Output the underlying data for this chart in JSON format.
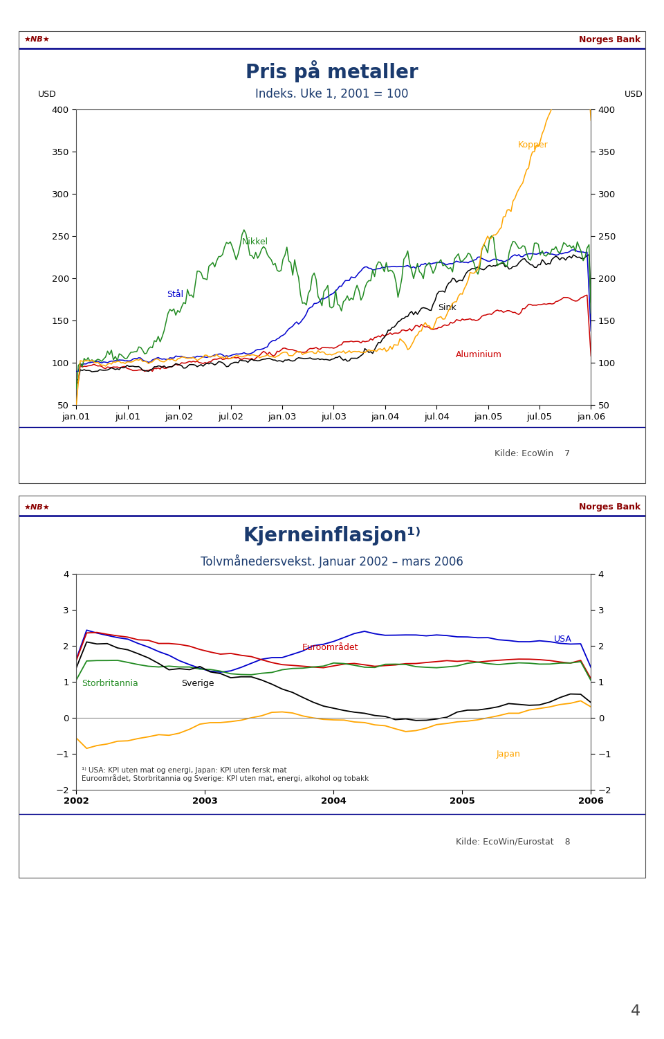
{
  "page_bg": "#ffffff",
  "page_number": "4",
  "chart1": {
    "title": "Pris på metaller",
    "subtitle": "Indeks. Uke 1, 2001 = 100",
    "title_color": "#1a3a6e",
    "ylim": [
      50,
      400
    ],
    "yticks": [
      50,
      100,
      150,
      200,
      250,
      300,
      350,
      400
    ],
    "xtick_labels": [
      "jan.01",
      "jul.01",
      "jan.02",
      "jul.02",
      "jan.03",
      "jul.03",
      "jan.04",
      "jul.04",
      "jan.05",
      "jul.05",
      "jan.06"
    ],
    "source": "Kilde: EcoWin",
    "page_num": "7",
    "lines": {
      "Kopper": {
        "color": "#FFA500"
      },
      "Nikkel": {
        "color": "#228B22"
      },
      "Stål": {
        "color": "#0000CD"
      },
      "Sink": {
        "color": "#000000"
      },
      "Aluminium": {
        "color": "#CC0000"
      }
    }
  },
  "chart2": {
    "title": "Kjerneinflasjon¹⁾",
    "subtitle": "Tolvmånedersvekst. Januar 2002 – mars 2006",
    "title_color": "#1a3a6e",
    "ylim": [
      -2,
      4
    ],
    "yticks": [
      -2,
      -1,
      0,
      1,
      2,
      3,
      4
    ],
    "xtick_labels": [
      "2002",
      "2003",
      "2004",
      "2005",
      "2006"
    ],
    "source": "Kilde: EcoWin/Eurostat",
    "page_num": "8",
    "footnote1": "¹⁾ USA: KPI uten mat og energi, Japan: KPI uten fersk mat",
    "footnote2": "Euroområdet, Storbritannia og Sverige: KPI uten mat, energi, alkohol og tobakk",
    "lines": {
      "USA": {
        "color": "#0000CD"
      },
      "Euroområdet": {
        "color": "#CC0000"
      },
      "Storbritannia": {
        "color": "#228B22"
      },
      "Sverige": {
        "color": "#000000"
      },
      "Japan": {
        "color": "#FFA500"
      }
    }
  },
  "nb_logo_color": "#8B0000",
  "norges_bank_color": "#8B0000",
  "header_line_color": "#00008B"
}
